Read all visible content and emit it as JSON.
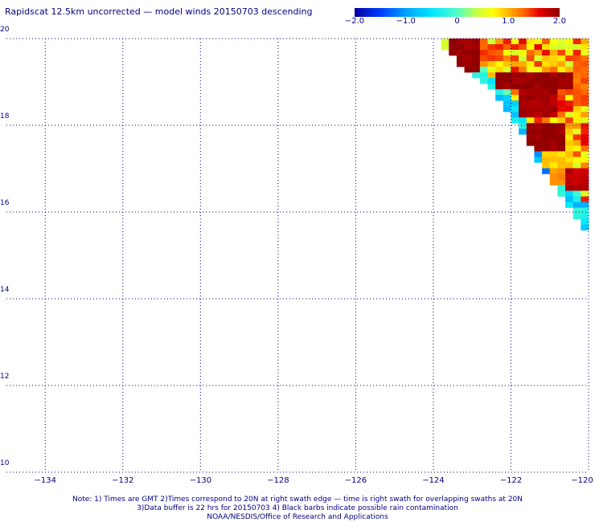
{
  "title": "Rapidscat 12.5km uncorrected — model winds 20150703 descending",
  "colorbar": {
    "ticks": [
      "−2.0",
      "−1.0",
      "0",
      "1.0",
      "2.0"
    ],
    "tick_values": [
      -2.0,
      -1.0,
      0,
      1.0,
      2.0
    ],
    "colors": [
      "#0000a0",
      "#0050ff",
      "#00d8ff",
      "#40ffb0",
      "#c0ff40",
      "#ffff00",
      "#ffb000",
      "#ff6000",
      "#e00000",
      "#900000"
    ]
  },
  "axes": {
    "y_labels": [
      "20",
      "18",
      "16",
      "14",
      "12",
      "10"
    ],
    "x_labels": [
      "−134",
      "−132",
      "−130",
      "−128",
      "−126",
      "−124",
      "−122",
      "−120"
    ]
  },
  "notes": {
    "line1": "Note: 1) Times are GMT 2)Times correspond to 20N at right swath edge — time is right swath for overlapping swaths at 20N",
    "line2": "3)Data buffer is 22 hrs for 20150703 4) Black barbs indicate possible rain contamination",
    "line3": "NOAA/NESDIS/Office of Research and Applications"
  },
  "chart_data": {
    "type": "heatmap",
    "title": "Rapidscat 12.5km uncorrected — model winds 20150703 descending",
    "xlabel": "",
    "ylabel": "",
    "xlim": [
      -135,
      -120
    ],
    "ylim": [
      10,
      20
    ],
    "x_ticks": [
      -134,
      -132,
      -130,
      -128,
      -126,
      -124,
      -122,
      -120
    ],
    "y_ticks": [
      10,
      12,
      14,
      16,
      18,
      20
    ],
    "colorbar_range": [
      -2.0,
      2.0
    ],
    "grid": true,
    "swath": {
      "description_values": "wind speed difference (m/s), colorbar -2.0 to 2.0",
      "edge_points": [
        [
          -124.0,
          20.0
        ],
        [
          -123.4,
          19.4
        ],
        [
          -122.6,
          18.8
        ],
        [
          -122.0,
          18.0
        ],
        [
          -121.4,
          17.2
        ],
        [
          -120.8,
          16.4
        ],
        [
          -120.0,
          15.3
        ]
      ],
      "blocks": [
        {
          "lon": [
            -123.6,
            -122.8
          ],
          "lat": [
            19.2,
            20.0
          ],
          "value": 2.0
        },
        {
          "lon": [
            -122.8,
            -122.2
          ],
          "lat": [
            19.4,
            19.8
          ],
          "value": 1.4
        },
        {
          "lon": [
            -122.4,
            -120.4
          ],
          "lat": [
            18.8,
            19.1
          ],
          "value": 2.0
        },
        {
          "lon": [
            -121.8,
            -120.8
          ],
          "lat": [
            18.1,
            18.8
          ],
          "value": 1.9
        },
        {
          "lon": [
            -121.6,
            -120.6
          ],
          "lat": [
            17.4,
            18.0
          ],
          "value": 2.0
        },
        {
          "lon": [
            -120.4,
            -120.0
          ],
          "lat": [
            18.4,
            19.6
          ],
          "value": 1.3
        },
        {
          "lon": [
            -120.6,
            -120.0
          ],
          "lat": [
            16.4,
            17.0
          ],
          "value": 1.8
        },
        {
          "lon": [
            -121.2,
            -120.4
          ],
          "lat": [
            17.0,
            17.4
          ],
          "value": 0.9
        },
        {
          "lon": [
            -121.0,
            -120.4
          ],
          "lat": [
            16.6,
            17.0
          ],
          "value": 1.1
        }
      ],
      "edge_values": [
        {
          "lat_range": [
            19.6,
            20.0
          ],
          "value": 0.2
        },
        {
          "lat_range": [
            18.6,
            19.6
          ],
          "value": -0.3
        },
        {
          "lat_range": [
            17.6,
            18.6
          ],
          "value": -0.6
        },
        {
          "lat_range": [
            16.6,
            17.6
          ],
          "value": -1.1
        },
        {
          "lat_range": [
            15.3,
            16.6
          ],
          "value": -0.5
        }
      ]
    }
  }
}
